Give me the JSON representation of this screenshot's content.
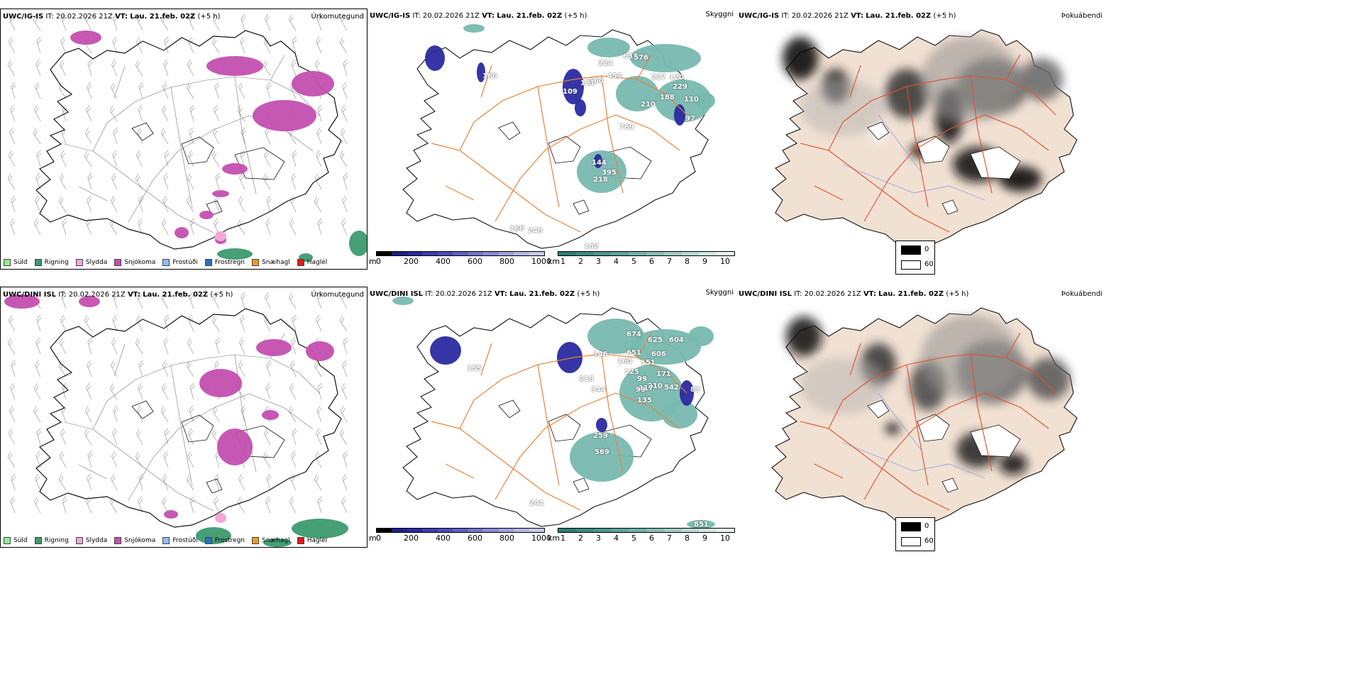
{
  "rows": [
    {
      "model": "UWC/IG-IS",
      "init_label": "IT:",
      "init_time": "20.02.2026 21Z",
      "valid_label": "VT:",
      "valid_time": "Lau. 21.feb. 02Z",
      "lead": "(+5 h)",
      "panel_precip": "Úrkomutegund",
      "panel_vis": "Skyggni",
      "panel_fog": "Þokuábendi",
      "vis_numbers": [
        "224",
        "637",
        "576",
        "454",
        "160",
        "227",
        "120",
        "229",
        "109",
        "121",
        "188",
        "110",
        "210",
        "97",
        "769",
        "144",
        "395",
        "218",
        "166",
        "248",
        "162",
        "160"
      ]
    },
    {
      "model": "UWC/DINI ISL",
      "init_label": "IT:",
      "init_time": "20.02.2026 21Z",
      "valid_label": "VT:",
      "valid_time": "Lau. 21.feb. 02Z",
      "lead": "(+5 h)",
      "panel_precip": "Úrkomutegund",
      "panel_vis": "Skyggni",
      "panel_fog": "Þokuábendi",
      "vis_numbers": [
        "674",
        "625",
        "604",
        "146",
        "651",
        "606",
        "160",
        "151",
        "125",
        "171",
        "99",
        "210",
        "542",
        "83",
        "218",
        "344",
        "135",
        "117",
        "99",
        "259",
        "569",
        "241",
        "851",
        "155"
      ]
    }
  ],
  "precip_legend": [
    {
      "label": "Súld",
      "color": "#90ee90"
    },
    {
      "label": "Rigning",
      "color": "#3c9a6e"
    },
    {
      "label": "Slydda",
      "color": "#f4a6d7"
    },
    {
      "label": "Snjókoma",
      "color": "#c34fb0"
    },
    {
      "label": "Frostúði",
      "color": "#8fbdf0"
    },
    {
      "label": "Frostregn",
      "color": "#2f6fc0"
    },
    {
      "label": "Snæhagl",
      "color": "#f29b1a"
    },
    {
      "label": "Haglél",
      "color": "#e11b1b"
    }
  ],
  "cloud_base_scale": {
    "unit": "m",
    "ticks": [
      "0",
      "200",
      "400",
      "600",
      "800",
      "1000"
    ]
  },
  "visibility_scale": {
    "unit": "km",
    "ticks": [
      "1",
      "2",
      "3",
      "4",
      "5",
      "6",
      "7",
      "8",
      "9",
      "10"
    ]
  },
  "fog_legend": {
    "low": "0",
    "high": "60"
  },
  "colors": {
    "snow": "#c34fb0",
    "rain": "#3c9a6e",
    "sleet": "#f4a6d7",
    "cloud_dark": "#2a2aa0",
    "vis_teal": "#78b9b0",
    "roads": "#e8833a",
    "roads_red": "#e3502a",
    "land_fog": "#f1e1d3",
    "rivers": "#8fa6e6"
  },
  "icons": [
    "wind-barb-icon"
  ]
}
